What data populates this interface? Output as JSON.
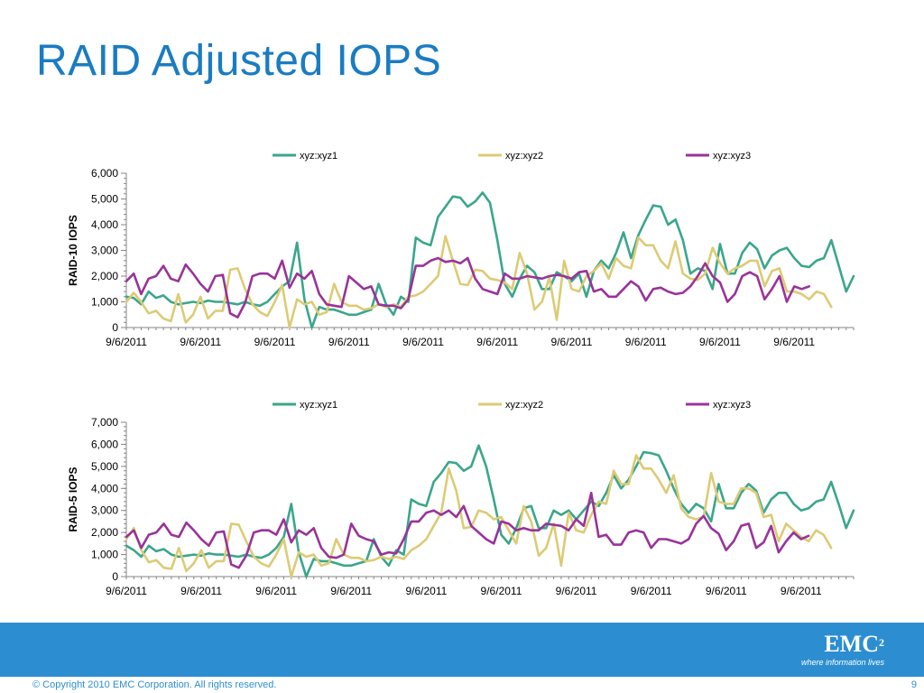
{
  "slide": {
    "title": "RAID Adjusted IOPS",
    "copyright": "© Copyright 2010  EMC Corporation.  All rights reserved.",
    "page_number": "9",
    "logo_text": "EMC",
    "logo_superscript": "2",
    "logo_tagline": "where information lives",
    "accent_color": "#1a7cc1",
    "footer_color": "#2c8ed1"
  },
  "chart_data": [
    {
      "type": "line",
      "ylabel": "RAID-10 IOPS",
      "ylim": [
        0,
        6000
      ],
      "yticks": [
        0,
        1000,
        2000,
        3000,
        4000,
        5000,
        6000
      ],
      "ytick_labels": [
        "0",
        "1,000",
        "2,000",
        "3,000",
        "4,000",
        "5,000",
        "6,000"
      ],
      "x_tick_labels": [
        "9/6/2011",
        "9/6/2011",
        "9/6/2011",
        "9/6/2011",
        "9/6/2011",
        "9/6/2011",
        "9/6/2011",
        "9/6/2011",
        "9/6/2011",
        "9/6/2011"
      ],
      "legend_position": "top",
      "grid": false,
      "series": [
        {
          "name": "xyz:xyz1",
          "color": "#3aa68c",
          "values": [
            1200,
            1150,
            900,
            1400,
            1150,
            1250,
            1000,
            900,
            950,
            1000,
            950,
            1050,
            1000,
            1000,
            950,
            900,
            1000,
            900,
            850,
            1000,
            1300,
            1600,
            1800,
            3300,
            1100,
            0,
            800,
            700,
            700,
            600,
            500,
            500,
            600,
            700,
            1700,
            900,
            500,
            1200,
            1000,
            3500,
            3300,
            3200,
            4300,
            4700,
            5100,
            5050,
            4700,
            4900,
            5250,
            4850,
            3400,
            1700,
            1200,
            1900,
            2400,
            2150,
            1500,
            1500,
            2150,
            2000,
            1800,
            2100,
            1200,
            2200,
            2600,
            2300,
            2900,
            3700,
            2700,
            3600,
            4200,
            4750,
            4700,
            4000,
            4200,
            3400,
            2100,
            2300,
            2200,
            1500,
            3250,
            2100,
            2100,
            2900,
            3300,
            3050,
            2300,
            2800,
            3000,
            3100,
            2700,
            2400,
            2350,
            2600,
            2700,
            3400,
            2400,
            1400,
            2000
          ]
        },
        {
          "name": "xyz:xyz2",
          "color": "#dccb75",
          "values": [
            1000,
            1350,
            1000,
            550,
            650,
            350,
            250,
            1300,
            200,
            500,
            1200,
            350,
            650,
            650,
            2250,
            2300,
            1500,
            900,
            600,
            450,
            1000,
            1650,
            0,
            1100,
            900,
            1000,
            500,
            600,
            1700,
            1000,
            850,
            850,
            700,
            750,
            900,
            800,
            900,
            800,
            1200,
            1250,
            1400,
            1700,
            2000,
            3550,
            2600,
            1700,
            1650,
            2250,
            2200,
            1900,
            1850,
            1750,
            1500,
            2900,
            2100,
            700,
            1000,
            1950,
            300,
            2600,
            1500,
            1400,
            2000,
            2200,
            2500,
            1900,
            2700,
            2400,
            2300,
            3500,
            3200,
            3200,
            2600,
            2300,
            3350,
            2100,
            1900,
            1850,
            2100,
            3100,
            2500,
            2100,
            2300,
            2400,
            2600,
            2600,
            1600,
            2200,
            2300,
            1400,
            1400,
            1300,
            1100,
            1400,
            1300,
            800
          ]
        },
        {
          "name": "xyz:xyz3",
          "color": "#993399",
          "values": [
            1800,
            2100,
            1300,
            1900,
            2000,
            2400,
            1900,
            1800,
            2450,
            2100,
            1700,
            1400,
            2000,
            2050,
            550,
            400,
            950,
            2000,
            2100,
            2100,
            1900,
            2600,
            1550,
            2100,
            1900,
            2200,
            1300,
            900,
            850,
            800,
            2000,
            1750,
            1500,
            1600,
            900,
            850,
            850,
            750,
            1100,
            2400,
            2400,
            2600,
            2700,
            2550,
            2600,
            2500,
            2700,
            1900,
            1500,
            1400,
            1300,
            2100,
            1900,
            1900,
            2000,
            1950,
            1900,
            2000,
            2050,
            2000,
            1900,
            2150,
            2200,
            1400,
            1500,
            1200,
            1200,
            1500,
            1800,
            1600,
            1050,
            1500,
            1550,
            1400,
            1300,
            1350,
            1600,
            2000,
            2500,
            2000,
            1750,
            1000,
            1300,
            2000,
            2150,
            2000,
            1100,
            1500,
            2000,
            1000,
            1600,
            1500,
            1600
          ]
        }
      ]
    },
    {
      "type": "line",
      "ylabel": "RAID-5 IOPS",
      "ylim": [
        0,
        7000
      ],
      "yticks": [
        0,
        1000,
        2000,
        3000,
        4000,
        5000,
        6000,
        7000
      ],
      "ytick_labels": [
        "0",
        "1,000",
        "2,000",
        "3,000",
        "4,000",
        "5,000",
        "6,000",
        "7,000"
      ],
      "x_tick_labels": [
        "9/6/2011",
        "9/6/2011",
        "9/6/2011",
        "9/6/2011",
        "9/6/2011",
        "9/6/2011",
        "9/6/2011",
        "9/6/2011",
        "9/6/2011",
        "9/6/2011"
      ],
      "legend_position": "top",
      "grid": false,
      "series": [
        {
          "name": "xyz:xyz1",
          "color": "#3aa68c",
          "values": [
            1400,
            1200,
            900,
            1400,
            1150,
            1250,
            1000,
            900,
            950,
            1000,
            950,
            1050,
            1000,
            1000,
            950,
            900,
            1000,
            900,
            850,
            1000,
            1300,
            1800,
            3300,
            1100,
            0,
            800,
            700,
            700,
            600,
            500,
            500,
            600,
            700,
            1700,
            900,
            500,
            1200,
            1000,
            3500,
            3300,
            3200,
            4300,
            4700,
            5200,
            5150,
            4800,
            5000,
            5950,
            5000,
            3500,
            1900,
            1500,
            2200,
            3100,
            3200,
            2200,
            2200,
            3000,
            2800,
            3000,
            2600,
            3000,
            3400,
            3200,
            3800,
            4600,
            4000,
            4400,
            5000,
            5650,
            5600,
            5500,
            4800,
            4000,
            3300,
            2900,
            3300,
            3100,
            2500,
            4200,
            3100,
            3100,
            3800,
            4200,
            3900,
            2900,
            3500,
            3800,
            3800,
            3300,
            3000,
            3100,
            3400,
            3500,
            4300,
            3300,
            2200,
            3000
          ]
        },
        {
          "name": "xyz:xyz2",
          "color": "#dccb75",
          "values": [
            1700,
            2200,
            1200,
            650,
            750,
            400,
            350,
            1300,
            250,
            600,
            1200,
            400,
            700,
            700,
            2400,
            2350,
            1600,
            900,
            600,
            450,
            1000,
            1700,
            0,
            1100,
            900,
            1000,
            500,
            600,
            1700,
            1000,
            850,
            850,
            700,
            750,
            900,
            800,
            900,
            800,
            1200,
            1400,
            1700,
            2300,
            2900,
            4900,
            3900,
            2200,
            2250,
            3000,
            2900,
            2600,
            2700,
            2100,
            1500,
            3200,
            2500,
            950,
            1300,
            2400,
            500,
            2900,
            2100,
            2000,
            2800,
            3400,
            3300,
            4800,
            4200,
            4200,
            5500,
            4900,
            4900,
            4400,
            3800,
            4600,
            3100,
            2700,
            2600,
            2700,
            4700,
            3400,
            3300,
            3300,
            4000,
            4000,
            3800,
            2700,
            2800,
            1600,
            2400,
            2100,
            1800,
            1600,
            2100,
            1900,
            1300
          ]
        },
        {
          "name": "xyz:xyz3",
          "color": "#993399",
          "values": [
            1800,
            2100,
            1300,
            1900,
            2000,
            2400,
            1900,
            1800,
            2450,
            2100,
            1700,
            1400,
            2000,
            2050,
            550,
            400,
            950,
            2000,
            2100,
            2100,
            1900,
            2600,
            1550,
            2100,
            1900,
            2200,
            1300,
            900,
            850,
            1000,
            2400,
            1850,
            1700,
            1600,
            1000,
            1100,
            1050,
            1700,
            2500,
            2500,
            2900,
            3000,
            2800,
            3000,
            2700,
            3200,
            2300,
            2000,
            1700,
            1500,
            2500,
            2400,
            2100,
            2200,
            2100,
            2100,
            2400,
            2350,
            2300,
            2100,
            2600,
            2300,
            3800,
            1800,
            1900,
            1450,
            1450,
            2000,
            2100,
            2000,
            1300,
            1700,
            1700,
            1600,
            1500,
            1700,
            2400,
            2750,
            2200,
            1950,
            1200,
            1600,
            2300,
            2400,
            1300,
            1550,
            2300,
            1100,
            1600,
            2000,
            1700,
            1850
          ]
        }
      ]
    }
  ]
}
